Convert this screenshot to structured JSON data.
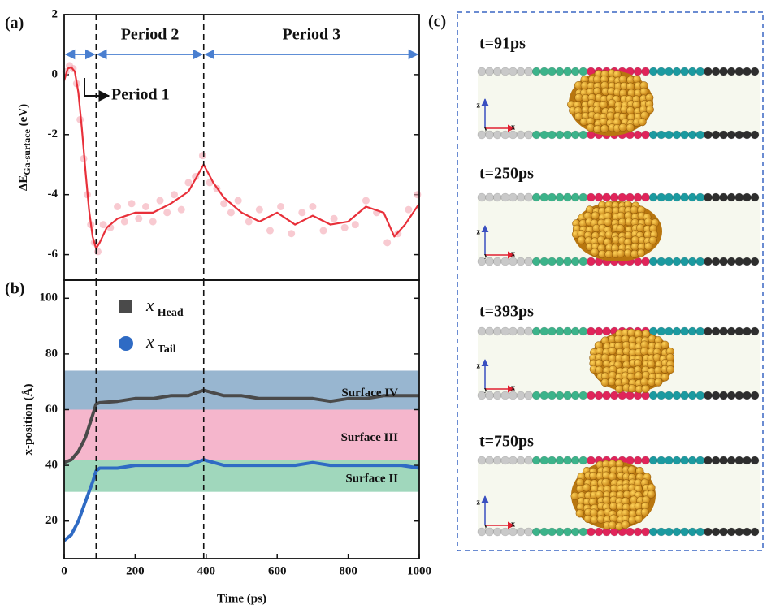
{
  "chart_data": [
    {
      "type": "line",
      "panel": "(a)",
      "ylabel": "ΔE",
      "ylabel_sub": "Ga-surface",
      "ylabel_unit": " (eV)",
      "xlim": [
        0,
        1000
      ],
      "ylim": [
        -6.85,
        2
      ],
      "yticks": [
        -6,
        -4,
        -2,
        0,
        2
      ],
      "vlines": [
        90,
        393
      ],
      "annotations": [
        "Period 1",
        "Period 2",
        "Period 3"
      ],
      "annotation_color": "#4a7fd0",
      "series": [
        {
          "type": "scatter",
          "color": "#f4a6b2",
          "x": [
            5,
            15,
            25,
            35,
            45,
            55,
            65,
            75,
            85,
            95,
            110,
            130,
            150,
            170,
            190,
            210,
            230,
            250,
            270,
            290,
            310,
            330,
            350,
            370,
            390,
            410,
            430,
            450,
            470,
            490,
            520,
            550,
            580,
            610,
            640,
            670,
            700,
            730,
            760,
            790,
            820,
            850,
            880,
            910,
            940,
            970,
            995
          ],
          "values": [
            0.1,
            0.3,
            0.2,
            -0.3,
            -1.5,
            -2.8,
            -4.0,
            -5.0,
            -5.6,
            -5.9,
            -5.0,
            -5.1,
            -4.4,
            -4.9,
            -4.3,
            -4.8,
            -4.4,
            -4.9,
            -4.2,
            -4.6,
            -4.0,
            -4.5,
            -3.6,
            -3.4,
            -2.7,
            -3.6,
            -3.8,
            -4.3,
            -4.6,
            -4.2,
            -4.9,
            -4.5,
            -5.2,
            -4.4,
            -5.3,
            -4.6,
            -4.4,
            -5.2,
            -4.8,
            -5.1,
            -5.0,
            -4.2,
            -4.6,
            -5.6,
            -5.3,
            -4.5,
            -4.0
          ]
        },
        {
          "type": "line",
          "color": "#e8303a",
          "x": [
            0,
            10,
            20,
            30,
            40,
            50,
            60,
            70,
            80,
            90,
            100,
            120,
            150,
            200,
            250,
            300,
            350,
            393,
            420,
            450,
            500,
            550,
            600,
            650,
            700,
            750,
            800,
            850,
            900,
            930,
            960,
            1000
          ],
          "values": [
            -0.2,
            0.2,
            0.25,
            0.1,
            -0.6,
            -1.8,
            -3.2,
            -4.5,
            -5.4,
            -5.8,
            -5.6,
            -5.1,
            -4.8,
            -4.6,
            -4.6,
            -4.3,
            -3.9,
            -3.0,
            -3.6,
            -4.1,
            -4.6,
            -4.9,
            -4.6,
            -5.0,
            -4.7,
            -5.0,
            -4.9,
            -4.4,
            -4.6,
            -5.4,
            -5.0,
            -4.3
          ]
        }
      ]
    },
    {
      "type": "line",
      "panel": "(b)",
      "ylabel": "x-position (Å)",
      "xlabel": "Time (ps)",
      "xlim": [
        0,
        1000
      ],
      "xticks": [
        0,
        200,
        400,
        600,
        800,
        1000
      ],
      "ylim": [
        6.5,
        106.5
      ],
      "yticks": [
        20,
        40,
        60,
        80,
        100
      ],
      "vlines": [
        90,
        393
      ],
      "bands": [
        {
          "label": "Surface IV",
          "range": [
            60,
            74
          ],
          "color": "#86a9c8"
        },
        {
          "label": "Surface III",
          "range": [
            42,
            60
          ],
          "color": "#f3a9c3"
        },
        {
          "label": "Surface II",
          "range": [
            30.5,
            42
          ],
          "color": "#8fd0b0"
        }
      ],
      "legend_prefix": "x",
      "x": [
        0,
        20,
        40,
        60,
        80,
        90,
        100,
        150,
        200,
        250,
        300,
        350,
        393,
        450,
        500,
        550,
        600,
        650,
        700,
        750,
        800,
        850,
        900,
        950,
        1000
      ],
      "series": [
        {
          "type": "line",
          "name": "Head",
          "marker": "square",
          "color": "#4a4a4a",
          "values": [
            41,
            42,
            45,
            50,
            58,
            62,
            62.5,
            63,
            64,
            64,
            65,
            65,
            67,
            65,
            65,
            64,
            64,
            64,
            64,
            63,
            64,
            64,
            65,
            65,
            65
          ]
        },
        {
          "type": "line",
          "name": "Tail",
          "marker": "circle",
          "color": "#2f6bc4",
          "values": [
            13,
            15,
            20,
            27,
            34,
            38,
            39,
            39,
            40,
            40,
            40,
            40,
            42,
            40,
            40,
            40,
            40,
            40,
            41,
            40,
            40,
            40,
            40,
            40,
            39
          ]
        }
      ]
    }
  ],
  "panel_c": {
    "label": "(c)",
    "frames": [
      "t=91ps",
      "t=250ps",
      "t=393ps",
      "t=750ps"
    ],
    "axes": [
      "z",
      "x",
      "y"
    ]
  }
}
